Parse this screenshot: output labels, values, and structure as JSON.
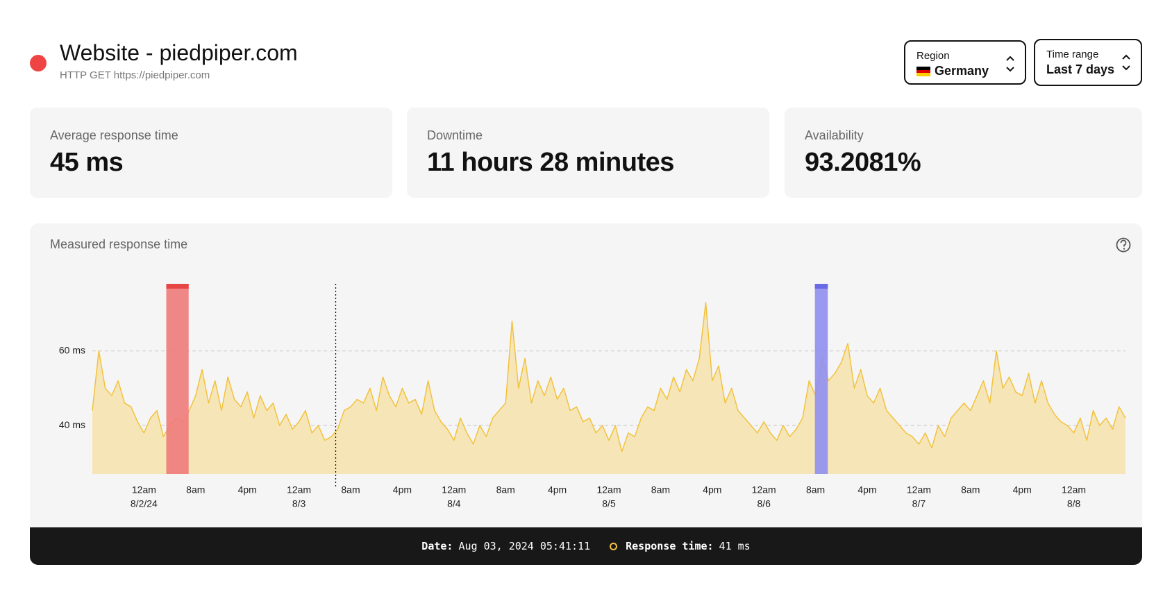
{
  "header": {
    "title": "Website - piedpiper.com",
    "subtitle": "HTTP GET https://piedpiper.com",
    "status_color": "#ef4444"
  },
  "controls": [
    {
      "label": "Region",
      "value": "Germany"
    },
    {
      "label": "Time range",
      "value": "Last 7 days"
    }
  ],
  "stats": [
    {
      "label": "Average response time",
      "value": "45 ms"
    },
    {
      "label": "Downtime",
      "value": "11 hours 28 minutes"
    },
    {
      "label": "Availability",
      "value": "93.2081%"
    }
  ],
  "chart": {
    "type": "area",
    "title": "Measured response time",
    "color": "#f2c23e",
    "fill": "#f6e6b7",
    "xlim": [
      "2024-08-01T16:00",
      "2024-08-08T08:00"
    ],
    "values": [
      44,
      60,
      50,
      48,
      52,
      46,
      45,
      41,
      38,
      42,
      44,
      37,
      40,
      42,
      41,
      44,
      48,
      55,
      46,
      52,
      44,
      53,
      47,
      45,
      49,
      42,
      48,
      44,
      46,
      40,
      43,
      39,
      41,
      44,
      38,
      40,
      36,
      37,
      39,
      44,
      45,
      47,
      46,
      50,
      44,
      53,
      48,
      45,
      50,
      46,
      47,
      43,
      52,
      44,
      41,
      39,
      36,
      42,
      38,
      35,
      40,
      37,
      42,
      44,
      46,
      68,
      50,
      58,
      46,
      52,
      48,
      53,
      47,
      50,
      44,
      45,
      41,
      42,
      38,
      40,
      36,
      40,
      33,
      38,
      37,
      42,
      45,
      44,
      50,
      47,
      53,
      49,
      55,
      52,
      58,
      73,
      52,
      56,
      46,
      50,
      44,
      42,
      40,
      38,
      41,
      38,
      36,
      40,
      37,
      39,
      42,
      52,
      48,
      58,
      52,
      54,
      57,
      62,
      50,
      55,
      48,
      46,
      50,
      44,
      42,
      40,
      38,
      37,
      35,
      38,
      34,
      40,
      37,
      42,
      44,
      46,
      44,
      48,
      52,
      46,
      60,
      50,
      53,
      49,
      48,
      54,
      46,
      52,
      46,
      43,
      41,
      40,
      38,
      42,
      36,
      44,
      40,
      42,
      39,
      45,
      42
    ],
    "ylim": [
      27,
      78
    ],
    "yticks": [
      {
        "value": 40,
        "label": "40 ms"
      },
      {
        "value": 60,
        "label": "60 ms"
      }
    ],
    "grid": true,
    "xticks": [
      {
        "value": "2024-08-02T00:00",
        "label": "12am",
        "sublabel": "8/2/24"
      },
      {
        "value": "2024-08-02T08:00",
        "label": "8am"
      },
      {
        "value": "2024-08-02T16:00",
        "label": "4pm"
      },
      {
        "value": "2024-08-03T00:00",
        "label": "12am",
        "sublabel": "8/3"
      },
      {
        "value": "2024-08-03T08:00",
        "label": "8am"
      },
      {
        "value": "2024-08-03T16:00",
        "label": "4pm"
      },
      {
        "value": "2024-08-04T00:00",
        "label": "12am",
        "sublabel": "8/4"
      },
      {
        "value": "2024-08-04T08:00",
        "label": "8am"
      },
      {
        "value": "2024-08-04T16:00",
        "label": "4pm"
      },
      {
        "value": "2024-08-05T00:00",
        "label": "12am",
        "sublabel": "8/5"
      },
      {
        "value": "2024-08-05T08:00",
        "label": "8am"
      },
      {
        "value": "2024-08-05T16:00",
        "label": "4pm"
      },
      {
        "value": "2024-08-06T00:00",
        "label": "12am",
        "sublabel": "8/6"
      },
      {
        "value": "2024-08-06T08:00",
        "label": "8am"
      },
      {
        "value": "2024-08-06T16:00",
        "label": "4pm"
      },
      {
        "value": "2024-08-07T00:00",
        "label": "12am",
        "sublabel": "8/7"
      },
      {
        "value": "2024-08-07T08:00",
        "label": "8am"
      },
      {
        "value": "2024-08-07T16:00",
        "label": "4pm"
      },
      {
        "value": "2024-08-08T00:00",
        "label": "12am",
        "sublabel": "8/8"
      }
    ],
    "bands": [
      {
        "start": "2024-08-02T03:27",
        "end": "2024-08-02T06:55",
        "color": "#ef7b7b",
        "cap": "#e84545"
      },
      {
        "start": "2024-08-06T07:54",
        "end": "2024-08-06T09:54",
        "color": "#8f8ff0",
        "cap": "#6a6ae6"
      }
    ],
    "cursor": "2024-08-03T05:41:11",
    "tooltip": {
      "date_label": "Date:",
      "date": "Aug 03, 2024 05:41:11",
      "value_label": "Response time:",
      "value": "41 ms"
    }
  }
}
